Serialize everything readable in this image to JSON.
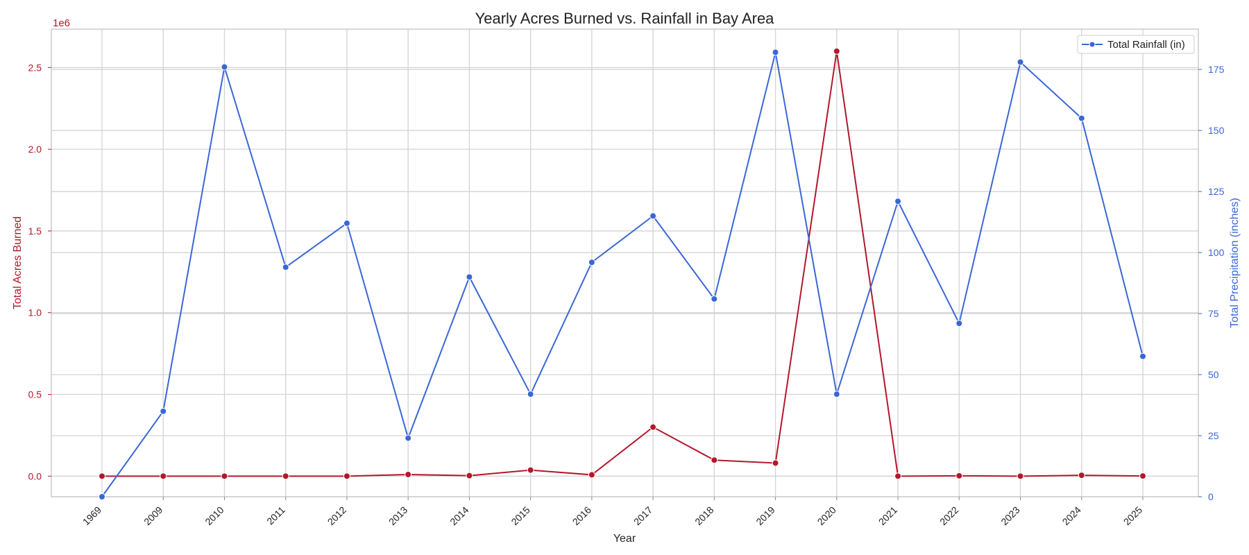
{
  "chart_data": {
    "type": "line",
    "title": "Yearly Acres Burned vs. Rainfall in Bay Area",
    "xlabel": "Year",
    "categories": [
      "1969",
      "2009",
      "2010",
      "2011",
      "2012",
      "2013",
      "2014",
      "2015",
      "2016",
      "2017",
      "2018",
      "2019",
      "2020",
      "2021",
      "2022",
      "2023",
      "2024",
      "2025"
    ],
    "left_axis": {
      "label": "Total Acres Burned",
      "multiplier_label": "1e6",
      "ylim": [
        -126000,
        2735000
      ],
      "ticks": [
        0,
        500000,
        1000000,
        1500000,
        2000000,
        2500000
      ],
      "tick_labels": [
        "0.0",
        "0.5",
        "1.0",
        "1.5",
        "2.0",
        "2.5"
      ],
      "color": "#b2182b"
    },
    "right_axis": {
      "label": "Total Precipitation (inches)",
      "ylim": [
        0,
        191.5
      ],
      "ticks": [
        0,
        25,
        50,
        75,
        100,
        125,
        150,
        175
      ],
      "tick_labels": [
        "0",
        "25",
        "50",
        "75",
        "100",
        "125",
        "150",
        "175"
      ],
      "color": "#3a66d6"
    },
    "series": [
      {
        "axis": "left",
        "color": "#b2182b",
        "values": [
          0,
          0,
          0,
          0,
          0,
          10000,
          3000,
          37000,
          8000,
          300000,
          98000,
          80000,
          2600000,
          0,
          2000,
          0,
          5000,
          1000
        ]
      },
      {
        "name": "Total Rainfall (in)",
        "axis": "right",
        "color": "#3a66d6",
        "values": [
          0,
          35,
          176,
          94,
          112,
          24,
          90,
          42,
          96,
          115,
          81,
          182,
          42,
          121,
          71,
          178,
          155,
          57.5
        ]
      }
    ],
    "legend": {
      "position": "top-right",
      "entries": [
        "Total Rainfall (in)"
      ]
    },
    "grid": true
  }
}
